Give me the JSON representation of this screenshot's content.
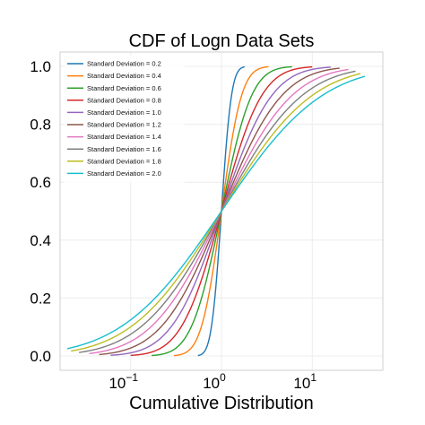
{
  "chart_data": {
    "type": "line",
    "title": "CDF of Logn Data Sets",
    "xlabel": "Cumulative Distribution",
    "ylabel": "",
    "x_scale": "log",
    "xlim": [
      0.02,
      50
    ],
    "ylim": [
      0.0,
      1.0
    ],
    "x_ticks": [
      0.1,
      1,
      10
    ],
    "x_tick_labels": [
      {
        "base": "10",
        "exp": "−1"
      },
      {
        "base": "10",
        "exp": "0"
      },
      {
        "base": "10",
        "exp": "1"
      }
    ],
    "y_ticks": [
      0.0,
      0.2,
      0.4,
      0.6,
      0.8,
      1.0
    ],
    "y_tick_labels": [
      "0.0",
      "0.2",
      "0.4",
      "0.6",
      "0.8",
      "1.0"
    ],
    "grid": true,
    "legend_position": "top-left",
    "series": [
      {
        "name": "Standard Deviation = 0.2",
        "sigma": 0.2,
        "color": "#1f77b4",
        "x_range": [
          0.55,
          1.8
        ]
      },
      {
        "name": "Standard Deviation = 0.4",
        "sigma": 0.4,
        "color": "#ff7f0e",
        "x_range": [
          0.3,
          3.3
        ]
      },
      {
        "name": "Standard Deviation = 0.6",
        "sigma": 0.6,
        "color": "#2ca02c",
        "x_range": [
          0.17,
          6
        ]
      },
      {
        "name": "Standard Deviation = 0.8",
        "sigma": 0.8,
        "color": "#d62728",
        "x_range": [
          0.1,
          10
        ]
      },
      {
        "name": "Standard Deviation = 1.0",
        "sigma": 1.0,
        "color": "#9467bd",
        "x_range": [
          0.06,
          16
        ]
      },
      {
        "name": "Standard Deviation = 1.2",
        "sigma": 1.2,
        "color": "#8c564b",
        "x_range": [
          0.045,
          20
        ]
      },
      {
        "name": "Standard Deviation = 1.4",
        "sigma": 1.4,
        "color": "#e377c2",
        "x_range": [
          0.035,
          25
        ]
      },
      {
        "name": "Standard Deviation = 1.6",
        "sigma": 1.6,
        "color": "#7f7f7f",
        "x_range": [
          0.027,
          30
        ]
      },
      {
        "name": "Standard Deviation = 1.8",
        "sigma": 1.8,
        "color": "#bcbd22",
        "x_range": [
          0.022,
          34
        ]
      },
      {
        "name": "Standard Deviation = 2.0",
        "sigma": 2.0,
        "color": "#17becf",
        "x_range": [
          0.02,
          38
        ]
      }
    ]
  }
}
